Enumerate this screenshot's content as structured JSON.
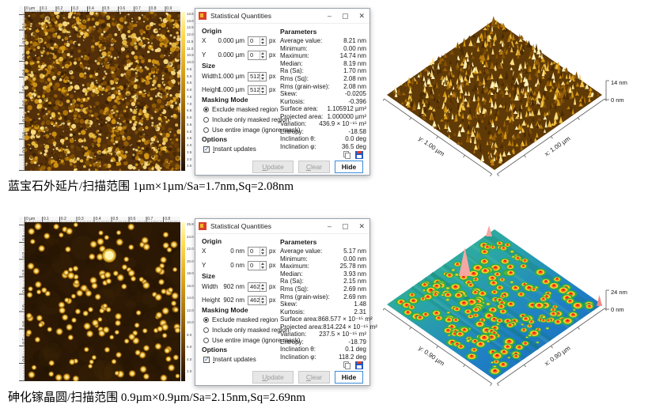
{
  "panels": [
    {
      "afm": {
        "ruler_x": [
          "0 µm",
          "0.1",
          "0.2",
          "0.3",
          "0.4",
          "0.5",
          "0.6",
          "0.7",
          "0.8",
          "0.9"
        ],
        "ruler_y": [
          "0.1",
          "0.2",
          "0.3",
          "0.4",
          "0.5",
          "0.6",
          "0.7",
          "0.8",
          "0.9"
        ],
        "colorbar_labels": [
          "13.6 nm",
          "13.0",
          "12.5",
          "12.0",
          "11.5",
          "11.0",
          "10.5",
          "10.0",
          "9.5",
          "9.0",
          "8.5",
          "8.0",
          "7.5",
          "7.0",
          "6.5",
          "6.0",
          "5.5",
          "5.0",
          "4.5",
          "4.0",
          "3.5",
          "3.0",
          "2.5"
        ]
      },
      "dialog": {
        "title": "Statistical Quantities",
        "window": {
          "minimize": "–",
          "maximize": "▢",
          "close": "✕"
        },
        "origin": {
          "header": "Origin",
          "x_label": "X",
          "x_value": "0.000 µm",
          "x_spin": "0",
          "y_label": "Y",
          "y_value": "0.000 µm",
          "y_spin": "0",
          "px": "px"
        },
        "size": {
          "header": "Size",
          "w_label": "Width",
          "w_value": "1.000 µm",
          "w_spin": "512",
          "h_label": "Height",
          "h_value": "1.000 µm",
          "h_spin": "512",
          "px": "px"
        },
        "masking": {
          "header": "Masking Mode",
          "opt1": "Exclude masked region",
          "opt2": "Include only masked region",
          "opt3": "Use entire image (ignore mask)"
        },
        "options": {
          "header": "Options",
          "instant": "Instant updates"
        },
        "parameters": {
          "header": "Parameters",
          "rows": [
            [
              "Average value:",
              "8.21 nm"
            ],
            [
              "Minimum:",
              "0.00 nm"
            ],
            [
              "Maximum:",
              "14.74 nm"
            ],
            [
              "Median:",
              "8.19 nm"
            ],
            [
              "Ra (Sa):",
              "1.70 nm"
            ],
            [
              "Rms (Sq):",
              "2.08 nm"
            ],
            [
              "Rms (grain-wise):",
              "2.08 nm"
            ],
            [
              "Skew:",
              "-0.0205"
            ],
            [
              "Kurtosis:",
              "-0.396"
            ],
            [
              "Surface area:",
              "1.105912 µm²"
            ],
            [
              "Projected area:",
              "1.000000 µm²"
            ],
            [
              "Variation:",
              "436.9 × 10⁻¹⁵ m²"
            ],
            [
              "Entropy:",
              "-18.58"
            ],
            [
              "Inclination θ:",
              "0.0 deg"
            ],
            [
              "Inclination φ:",
              "36.5 deg"
            ]
          ]
        },
        "buttons": {
          "update": "Update",
          "clear": "Clear",
          "hide": "Hide"
        }
      },
      "render3d": {
        "y_axis": "y: 1.00 µm",
        "x_axis": "x: 1.00 µm",
        "z_max": "14 nm",
        "z_min": "0 nm"
      },
      "caption": "蓝宝石外延片/扫描范围 1µm×1µm/Sa=1.7nm,Sq=2.08nm"
    },
    {
      "afm": {
        "ruler_x": [
          "0 µm",
          "0.1",
          "0.2",
          "0.3",
          "0.4",
          "0.5",
          "0.6",
          "0.7",
          "0.8"
        ],
        "ruler_y": [
          "0.1",
          "0.2",
          "0.3",
          "0.4",
          "0.5",
          "0.6",
          "0.7",
          "0.8"
        ],
        "colorbar_labels": [
          "25.8 nm",
          "24.0",
          "22.0",
          "20.0",
          "18.0",
          "16.0",
          "14.0",
          "12.0",
          "10.0",
          "8.0",
          "6.0",
          "4.0",
          "2.0"
        ]
      },
      "dialog": {
        "title": "Statistical Quantities",
        "window": {
          "minimize": "–",
          "maximize": "▢",
          "close": "✕"
        },
        "origin": {
          "header": "Origin",
          "x_label": "X",
          "x_value": "0 nm",
          "x_spin": "0",
          "y_label": "Y",
          "y_value": "0 nm",
          "y_spin": "0",
          "px": "px"
        },
        "size": {
          "header": "Size",
          "w_label": "Width",
          "w_value": "902 nm",
          "w_spin": "462",
          "h_label": "Height",
          "h_value": "902 nm",
          "h_spin": "462",
          "px": "px"
        },
        "masking": {
          "header": "Masking Mode",
          "opt1": "Exclude masked region",
          "opt2": "Include only masked region",
          "opt3": "Use entire image (ignore mask)"
        },
        "options": {
          "header": "Options",
          "instant": "Instant updates"
        },
        "parameters": {
          "header": "Parameters",
          "rows": [
            [
              "Average value:",
              "5.17 nm"
            ],
            [
              "Minimum:",
              "0.00 nm"
            ],
            [
              "Maximum:",
              "25.78 nm"
            ],
            [
              "Median:",
              "3.93 nm"
            ],
            [
              "Ra (Sa):",
              "2.15 nm"
            ],
            [
              "Rms (Sq):",
              "2.69 nm"
            ],
            [
              "Rms (grain-wise):",
              "2.69 nm"
            ],
            [
              "Skew:",
              "1.48"
            ],
            [
              "Kurtosis:",
              "2.31"
            ],
            [
              "Surface area:",
              "868.577 × 10⁻¹⁵ m²"
            ],
            [
              "Projected area:",
              "814.224 × 10⁻¹⁵ m²"
            ],
            [
              "Variation:",
              "237.5 × 10⁻¹⁵ m²"
            ],
            [
              "Entropy:",
              "-18.79"
            ],
            [
              "Inclination θ:",
              "0.1 deg"
            ],
            [
              "Inclination φ:",
              "118.2 deg"
            ]
          ]
        },
        "buttons": {
          "update": "Update",
          "clear": "Clear",
          "hide": "Hide"
        }
      },
      "render3d": {
        "y_axis": "y: 0.90 µm",
        "x_axis": "x: 0.90 µm",
        "z_max": "24 nm",
        "z_min": "0 nm"
      },
      "caption": "砷化镓晶圆/扫描范围 0.9µm×0.9µm/Sa=2.15nm,Sq=2.69nm"
    }
  ]
}
